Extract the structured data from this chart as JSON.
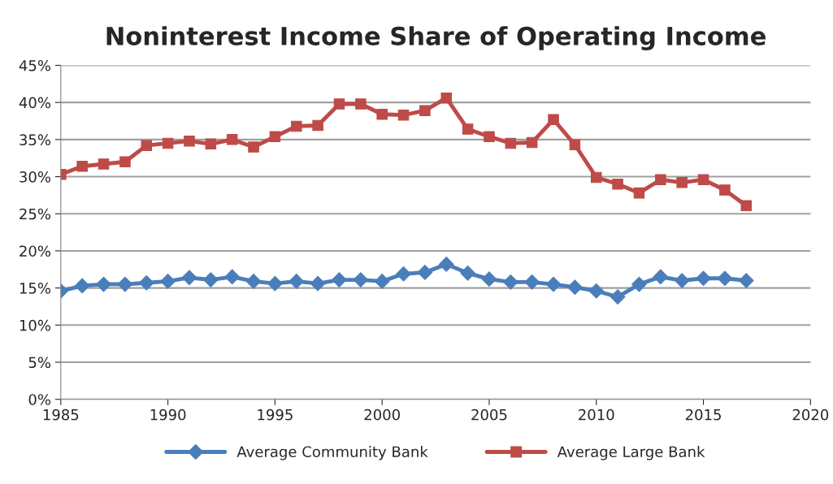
{
  "chart_data": {
    "type": "line",
    "title": "Noninterest Income Share of Operating Income",
    "x": [
      1985,
      1986,
      1987,
      1988,
      1989,
      1990,
      1991,
      1992,
      1993,
      1994,
      1995,
      1996,
      1997,
      1998,
      1999,
      2000,
      2001,
      2002,
      2003,
      2004,
      2005,
      2006,
      2007,
      2008,
      2009,
      2010,
      2011,
      2012,
      2013,
      2014,
      2015,
      2016,
      2017
    ],
    "series": [
      {
        "name": "Average Community Bank",
        "color": "#4a7ebb",
        "marker": "diamond",
        "values": [
          14.6,
          15.3,
          15.5,
          15.5,
          15.7,
          15.9,
          16.4,
          16.1,
          16.5,
          15.9,
          15.6,
          15.9,
          15.6,
          16.1,
          16.1,
          15.9,
          16.9,
          17.1,
          18.2,
          17.0,
          16.2,
          15.8,
          15.8,
          15.5,
          15.1,
          14.6,
          13.8,
          15.5,
          16.5,
          16.0,
          16.3,
          16.3,
          16.0
        ]
      },
      {
        "name": "Average Large Bank",
        "color": "#be4b48",
        "marker": "square",
        "values": [
          30.3,
          31.4,
          31.7,
          32.0,
          34.2,
          34.5,
          34.8,
          34.4,
          35.0,
          34.0,
          35.4,
          36.8,
          36.9,
          39.8,
          39.8,
          38.4,
          38.3,
          38.9,
          40.6,
          36.4,
          35.4,
          34.5,
          34.6,
          37.7,
          34.3,
          29.9,
          29.0,
          27.8,
          29.6,
          29.2,
          29.6,
          28.2,
          26.1
        ]
      }
    ],
    "xlim": [
      1985,
      2020
    ],
    "xticks": [
      1985,
      1990,
      1995,
      2000,
      2005,
      2010,
      2015,
      2020
    ],
    "ylim": [
      0,
      45
    ],
    "yticks": [
      {
        "value": 0,
        "label": "0%"
      },
      {
        "value": 5,
        "label": "5%"
      },
      {
        "value": 10,
        "label": "10%"
      },
      {
        "value": 15,
        "label": "15%"
      },
      {
        "value": 20,
        "label": "20%"
      },
      {
        "value": 25,
        "label": "25%"
      },
      {
        "value": 30,
        "label": "30%"
      },
      {
        "value": 35,
        "label": "35%"
      },
      {
        "value": 40,
        "label": "40%"
      },
      {
        "value": 45,
        "label": "45%"
      }
    ],
    "grid": "y",
    "legend": "bottom",
    "line_style": "solid"
  }
}
